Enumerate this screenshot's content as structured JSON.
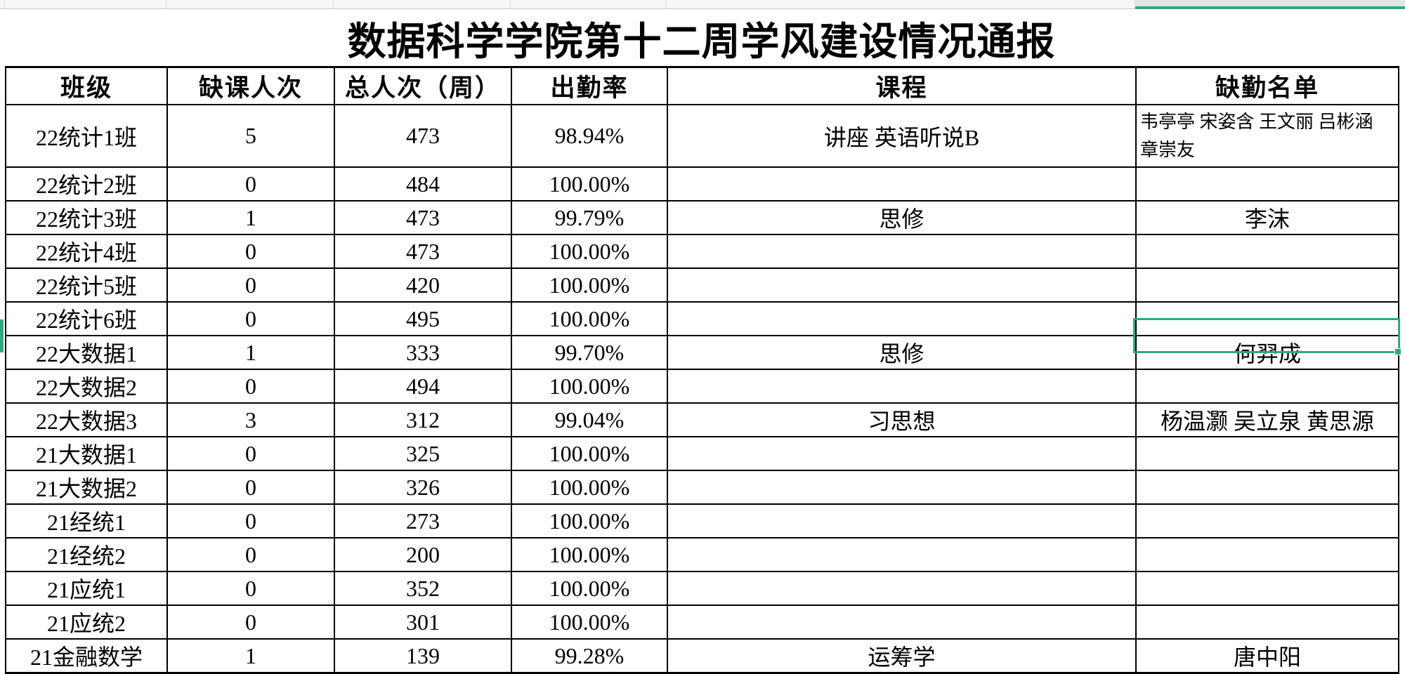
{
  "accent_color": "#2fa97c",
  "sheet": {
    "title": "数据科学学院第十二周学风建设情况通报",
    "columns": [
      "班级",
      "缺课人次",
      "总人次（周）",
      "出勤率",
      "课程",
      "缺勤名单"
    ],
    "rows": [
      {
        "class": "22统计1班",
        "absent": "5",
        "total": "473",
        "rate": "98.94%",
        "course": "讲座 英语听说B",
        "names": "韦亭亭 宋姿含 王文丽 吕彬涵 章崇友"
      },
      {
        "class": "22统计2班",
        "absent": "0",
        "total": "484",
        "rate": "100.00%",
        "course": "",
        "names": ""
      },
      {
        "class": "22统计3班",
        "absent": "1",
        "total": "473",
        "rate": "99.79%",
        "course": "思修",
        "names": "李沫"
      },
      {
        "class": "22统计4班",
        "absent": "0",
        "total": "473",
        "rate": "100.00%",
        "course": "",
        "names": ""
      },
      {
        "class": "22统计5班",
        "absent": "0",
        "total": "420",
        "rate": "100.00%",
        "course": "",
        "names": ""
      },
      {
        "class": "22统计6班",
        "absent": "0",
        "total": "495",
        "rate": "100.00%",
        "course": "",
        "names": ""
      },
      {
        "class": "22大数据1",
        "absent": "1",
        "total": "333",
        "rate": "99.70%",
        "course": "思修",
        "names": "何羿成"
      },
      {
        "class": "22大数据2",
        "absent": "0",
        "total": "494",
        "rate": "100.00%",
        "course": "",
        "names": ""
      },
      {
        "class": "22大数据3",
        "absent": "3",
        "total": "312",
        "rate": "99.04%",
        "course": "习思想",
        "names": "杨温灏 吴立泉 黄思源"
      },
      {
        "class": "21大数据1",
        "absent": "0",
        "total": "325",
        "rate": "100.00%",
        "course": "",
        "names": ""
      },
      {
        "class": "21大数据2",
        "absent": "0",
        "total": "326",
        "rate": "100.00%",
        "course": "",
        "names": ""
      },
      {
        "class": "21经统1",
        "absent": "0",
        "total": "273",
        "rate": "100.00%",
        "course": "",
        "names": ""
      },
      {
        "class": "21经统2",
        "absent": "0",
        "total": "200",
        "rate": "100.00%",
        "course": "",
        "names": ""
      },
      {
        "class": "21应统1",
        "absent": "0",
        "total": "352",
        "rate": "100.00%",
        "course": "",
        "names": ""
      },
      {
        "class": "21应统2",
        "absent": "0",
        "total": "301",
        "rate": "100.00%",
        "course": "",
        "names": ""
      },
      {
        "class": "21金融数学",
        "absent": "1",
        "total": "139",
        "rate": "99.28%",
        "course": "运筹学",
        "names": "唐中阳"
      }
    ],
    "selection": {
      "row_label": "22大数据1",
      "column_label": "缺勤名单",
      "value": "何羿成"
    }
  }
}
